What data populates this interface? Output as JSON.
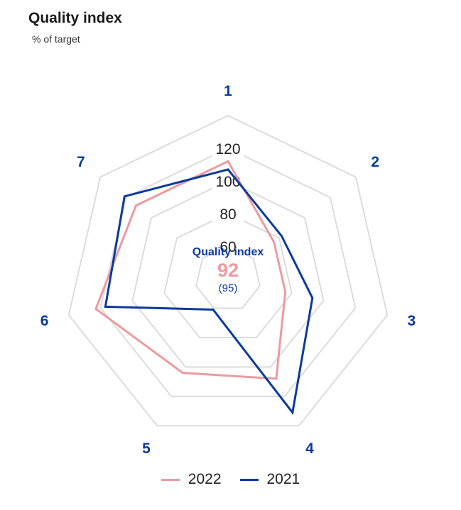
{
  "header": {
    "title": "Quality index",
    "subtitle": "% of target"
  },
  "center": {
    "title": "Quality index",
    "value": "92",
    "previous": "(95)"
  },
  "colors": {
    "series_2022": "#ec9aa0",
    "series_2021": "#0a3a9e",
    "grid": "#dcdcdc"
  },
  "chart_data": {
    "type": "radar",
    "axes": [
      "1",
      "2",
      "3",
      "4",
      "5",
      "6",
      "7"
    ],
    "range": [
      40,
      140
    ],
    "ticks": [
      60,
      80,
      100,
      120
    ],
    "grid": true,
    "legend_position": "bottom",
    "series": [
      {
        "name": "2022",
        "values": [
          112,
          76,
          76,
          108,
          104,
          123,
          112
        ]
      },
      {
        "name": "2021",
        "values": [
          107,
          82,
          93,
          131,
          61,
          117,
          121
        ]
      }
    ]
  }
}
